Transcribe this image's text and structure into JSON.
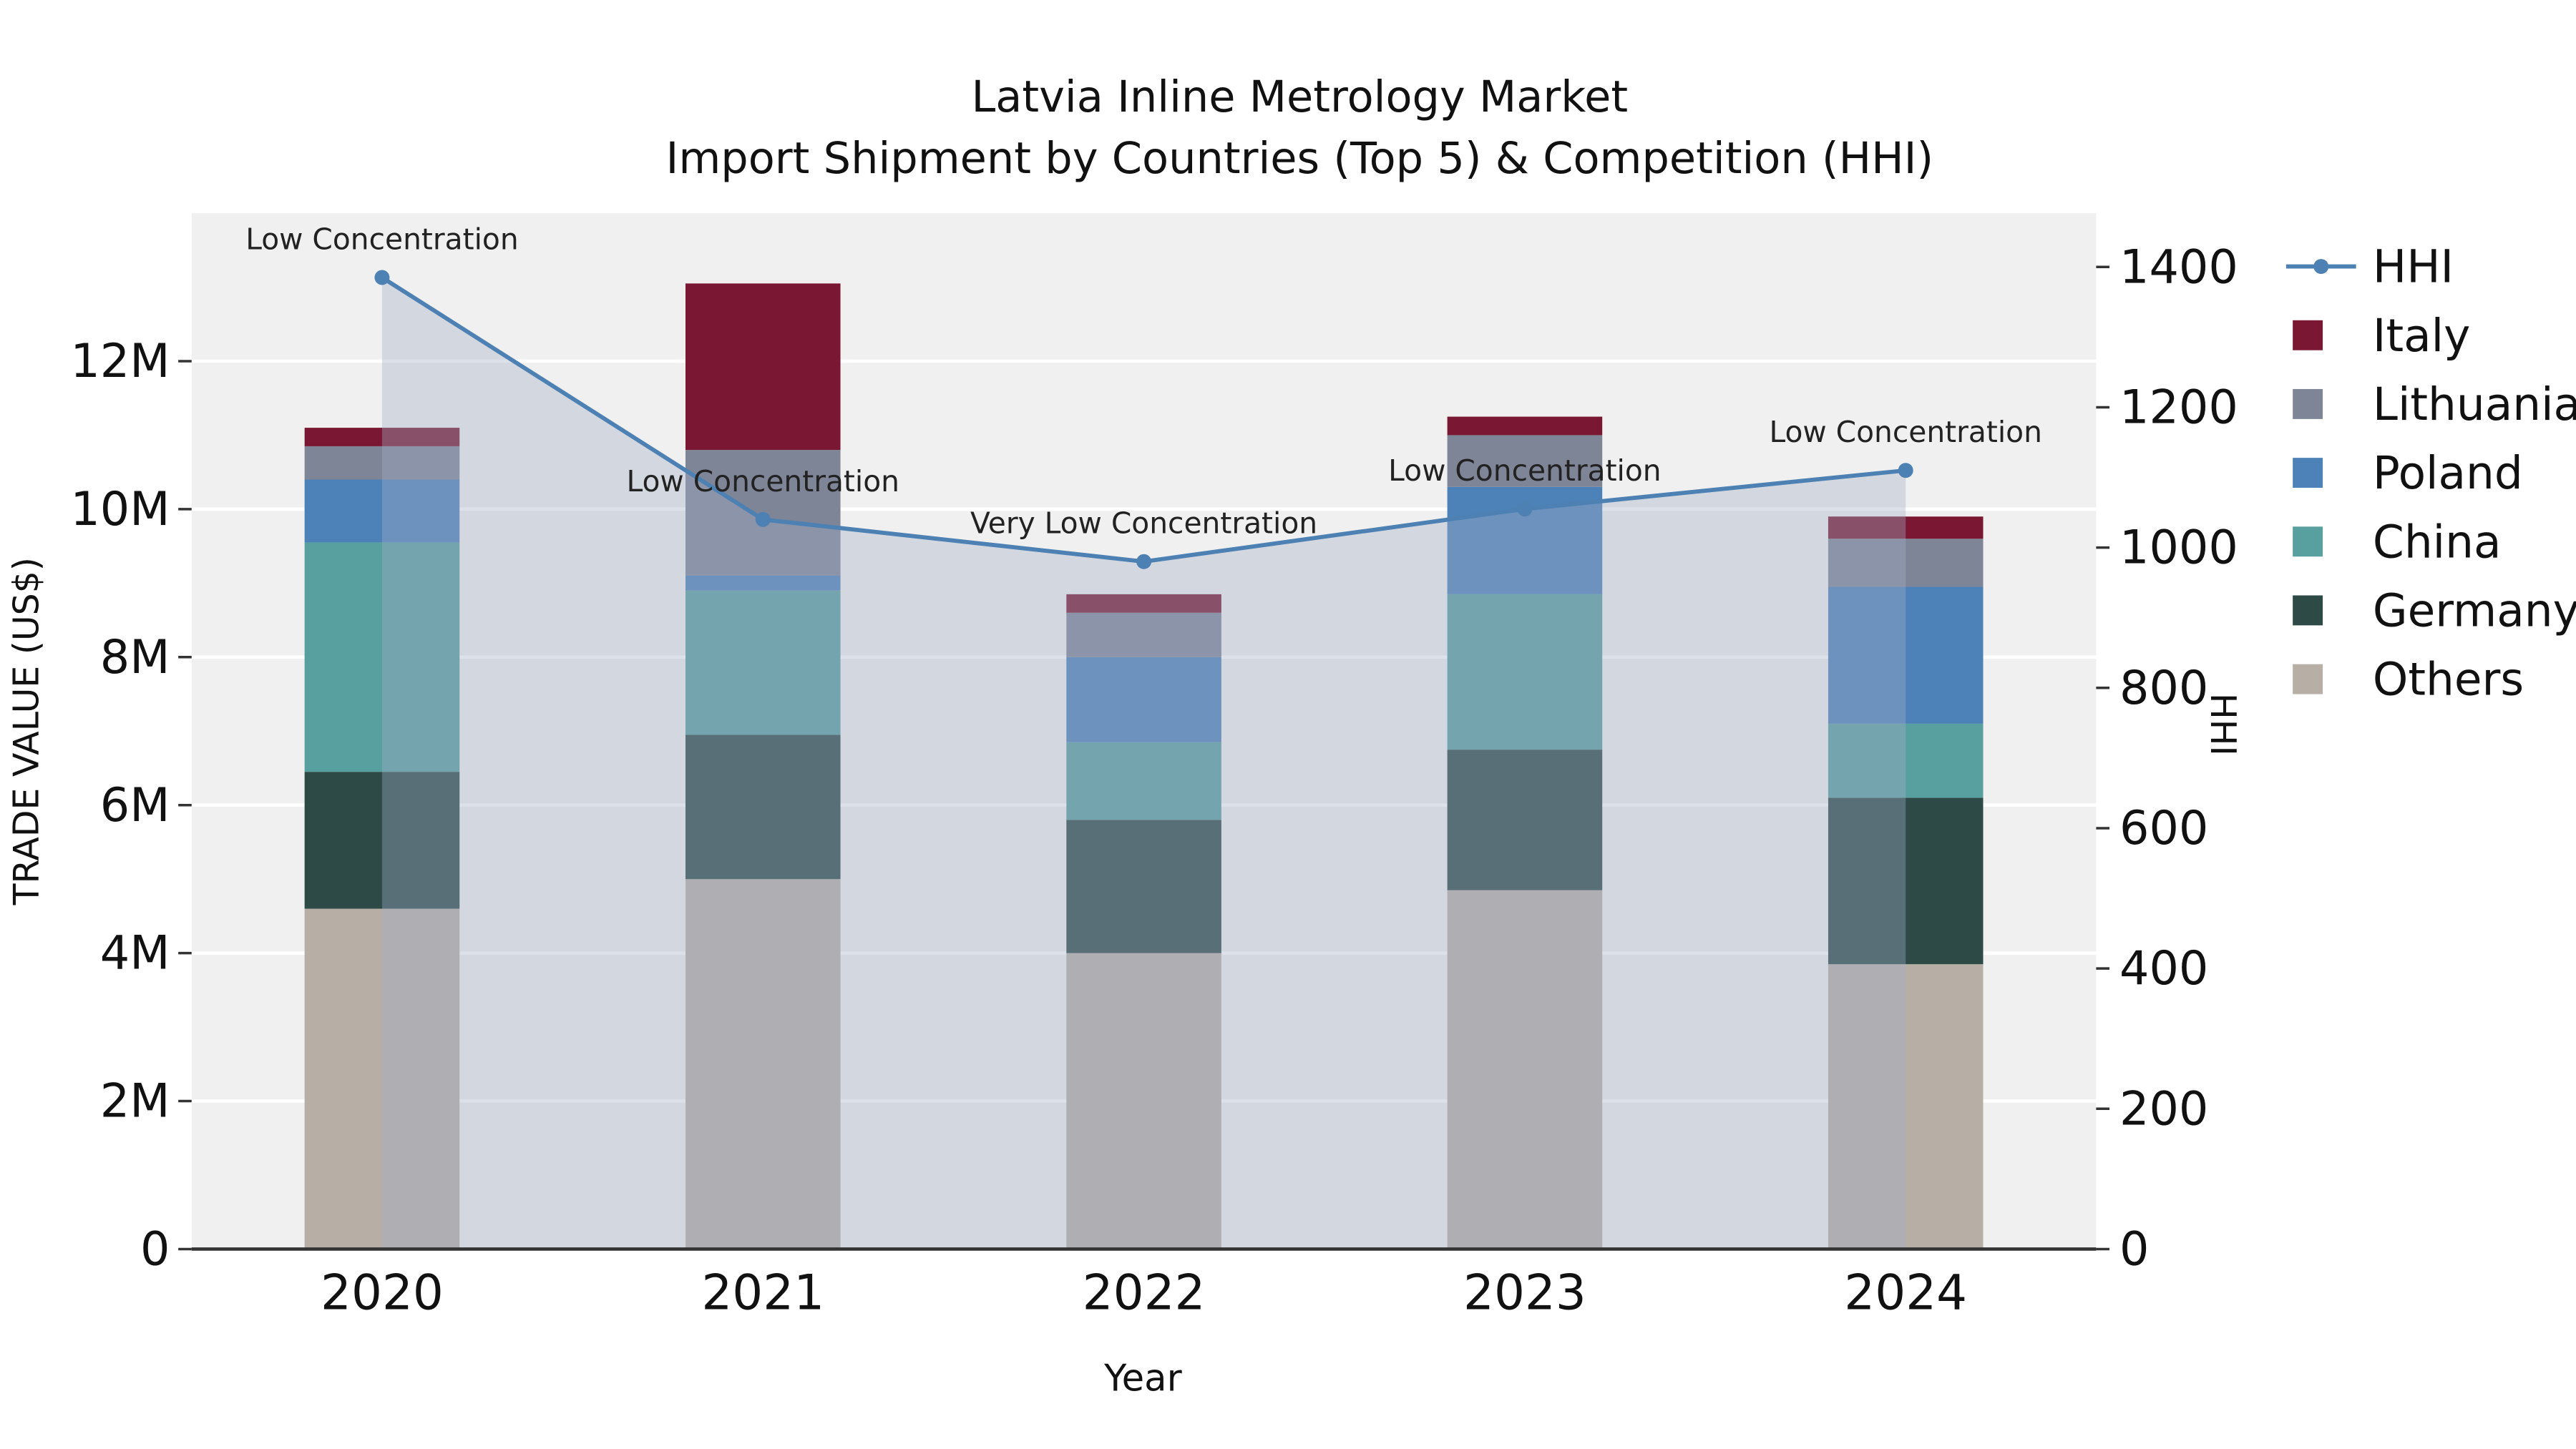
{
  "title": {
    "line1": "Latvia Inline Metrology Market",
    "line2": "Import Shipment by Countries (Top 5) & Competition (HHI)"
  },
  "chart_data": {
    "type": "bar",
    "subtype": "stacked-bar-with-line",
    "unit": "US$ millions (left axis), HHI index (right axis)",
    "categories": [
      "2020",
      "2021",
      "2022",
      "2023",
      "2024"
    ],
    "series": [
      {
        "name": "Others",
        "color": "#b7aea6",
        "values": [
          4.6,
          5.0,
          4.0,
          4.85,
          3.85
        ]
      },
      {
        "name": "Germany",
        "color": "#2d4a47",
        "values": [
          1.85,
          1.95,
          1.8,
          1.9,
          2.25
        ]
      },
      {
        "name": "China",
        "color": "#58a0a0",
        "values": [
          3.1,
          1.95,
          1.05,
          2.1,
          1.0
        ]
      },
      {
        "name": "Poland",
        "color": "#4d82b8",
        "values": [
          0.85,
          0.2,
          1.15,
          1.45,
          1.85
        ]
      },
      {
        "name": "Lithuania",
        "color": "#7d8597",
        "values": [
          0.45,
          1.7,
          0.6,
          0.7,
          0.65
        ]
      },
      {
        "name": "Italy",
        "color": "#7a1833",
        "values": [
          0.25,
          2.25,
          0.25,
          0.25,
          0.3
        ]
      }
    ],
    "hhi": {
      "name": "HHI",
      "color": "#4d80b3",
      "fill_color": "rgba(163,174,197,0.38)",
      "values": [
        1385,
        1040,
        980,
        1055,
        1110
      ],
      "annotations": [
        "Low Concentration",
        "Low Concentration",
        "Very Low Concentration",
        "Low Concentration",
        "Low Concentration"
      ]
    },
    "y_left": {
      "label": "TRADE VALUE (US$)",
      "ticks": [
        0,
        2,
        4,
        6,
        8,
        10,
        12
      ],
      "tick_labels": [
        "0",
        "2M",
        "4M",
        "6M",
        "8M",
        "10M",
        "12M"
      ],
      "max": 14
    },
    "y_right": {
      "label": "HHI",
      "ticks": [
        0,
        200,
        400,
        600,
        800,
        1000,
        1200,
        1400
      ],
      "max": 1400
    },
    "xlabel": "Year",
    "legend_order": [
      "HHI",
      "Italy",
      "Lithuania",
      "Poland",
      "China",
      "Germany",
      "Others"
    ],
    "plot_bg": "#f0f0f0",
    "grid_color": "#ffffff",
    "legend_position": "right"
  }
}
